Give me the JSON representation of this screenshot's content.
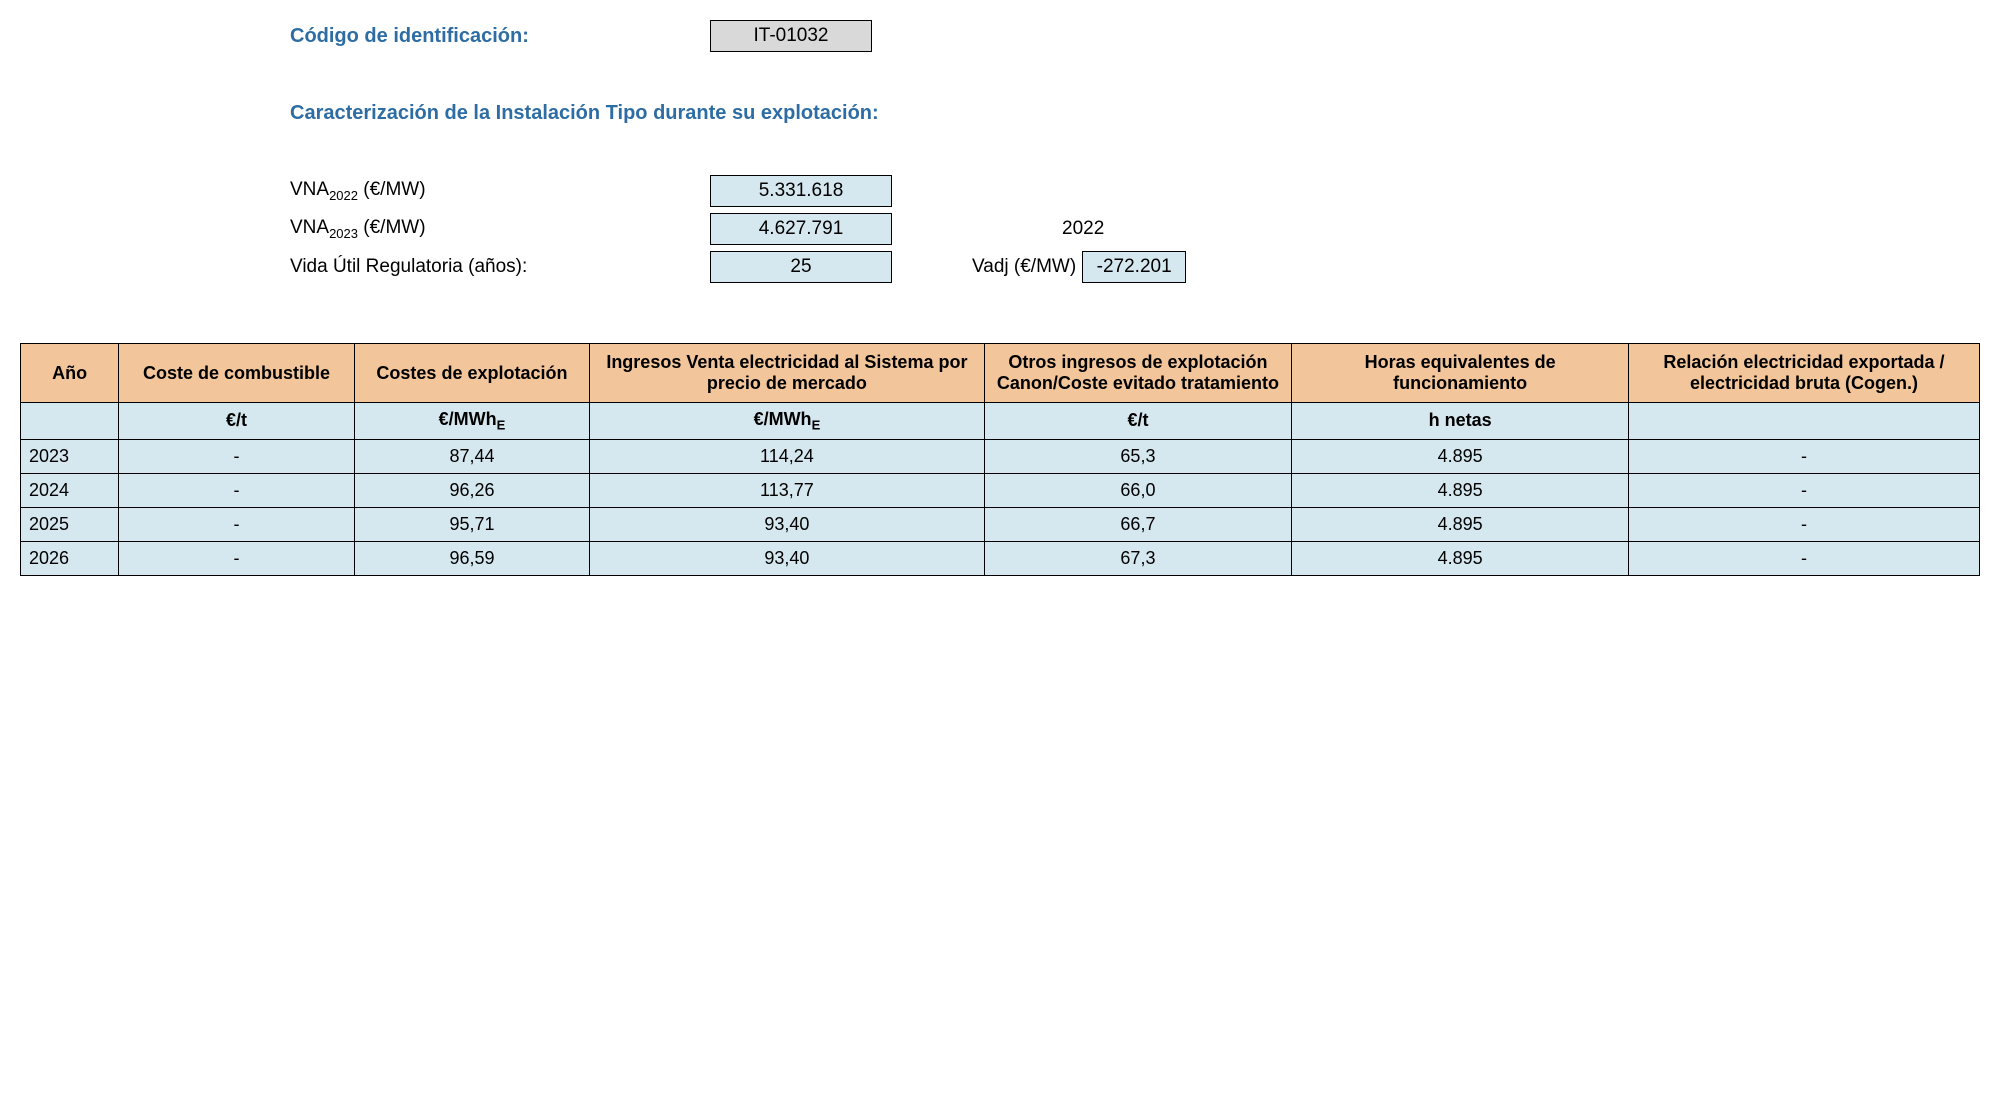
{
  "header": {
    "codigo_label": "Código de identificación:",
    "codigo_value": "IT-01032",
    "section_title": "Caracterización de la Instalación Tipo durante su explotación:",
    "vna2022_label_pre": "VNA",
    "vna2022_sub": "2022",
    "vna2022_label_post": " (€/MW)",
    "vna2022_value": "5.331.618",
    "vna2023_label_pre": "VNA",
    "vna2023_sub": "2023",
    "vna2023_label_post": " (€/MW)",
    "vna2023_value": "4.627.791",
    "year_right": "2022",
    "vida_label": "Vida Útil Regulatoria (años):",
    "vida_value": "25",
    "vadj_label": "Vadj (€/MW)",
    "vadj_value": "-272.201"
  },
  "table": {
    "columns": [
      "Año",
      "Coste de combustible",
      "Costes de explotación",
      "Ingresos Venta electricidad al Sistema por precio de mercado",
      "Otros ingresos de explotación Canon/Coste evitado tratamiento",
      "Horas equivalentes de funcionamiento",
      "Relación electricidad exportada / electricidad bruta (Cogen.)"
    ],
    "units": [
      "",
      "€/t",
      "€/MWhE",
      "€/MWhE",
      "€/t",
      "h netas",
      ""
    ],
    "units_sub": [
      "",
      "",
      "E",
      "E",
      "",
      "",
      ""
    ],
    "units_pre": [
      "",
      "€/t",
      "€/MWh",
      "€/MWh",
      "€/t",
      "h netas",
      ""
    ],
    "rows": [
      {
        "year": "2023",
        "cells": [
          "-",
          "87,44",
          "114,24",
          "65,3",
          "4.895",
          "-"
        ]
      },
      {
        "year": "2024",
        "cells": [
          "-",
          "96,26",
          "113,77",
          "66,0",
          "4.895",
          "-"
        ]
      },
      {
        "year": "2025",
        "cells": [
          "-",
          "95,71",
          "93,40",
          "66,7",
          "4.895",
          "-"
        ]
      },
      {
        "year": "2026",
        "cells": [
          "-",
          "96,59",
          "93,40",
          "67,3",
          "4.895",
          "-"
        ]
      }
    ]
  },
  "colors": {
    "header_text": "#2e6da4",
    "th_bg": "#f2c59b",
    "td_bg": "#d6e8ef",
    "code_bg": "#d9d9d9",
    "border": "#000000"
  }
}
